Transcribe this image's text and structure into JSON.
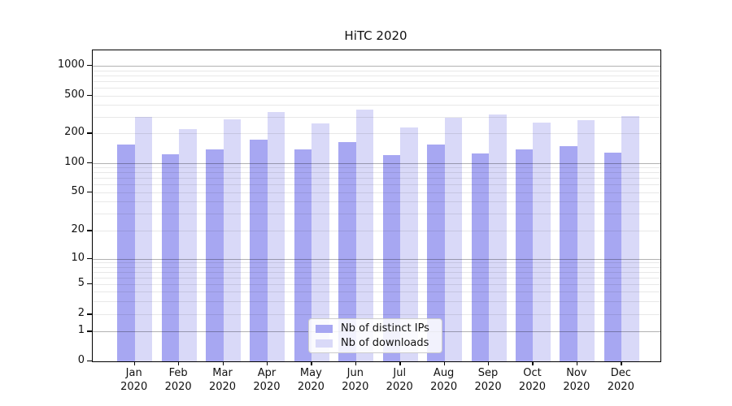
{
  "chart_data": {
    "type": "bar",
    "title": "HiTC 2020",
    "categories": [
      "Jan",
      "Feb",
      "Mar",
      "Apr",
      "May",
      "Jun",
      "Jul",
      "Aug",
      "Sep",
      "Oct",
      "Nov",
      "Dec"
    ],
    "x_year_label": "2020",
    "series": [
      {
        "name": "Nb of distinct IPs",
        "color": "#a7a7f2",
        "values": [
          155,
          124,
          138,
          172,
          138,
          164,
          120,
          153,
          126,
          139,
          148,
          128
        ]
      },
      {
        "name": "Nb of downloads",
        "color": "#d9d9f8",
        "values": [
          300,
          224,
          282,
          337,
          253,
          355,
          230,
          295,
          315,
          260,
          275,
          302
        ]
      }
    ],
    "xlabel": "",
    "ylabel": "",
    "y_scale": "symlog",
    "y_ticks": [
      0,
      1,
      2,
      5,
      10,
      20,
      50,
      100,
      200,
      500,
      1000
    ],
    "ylim": [
      0,
      1400
    ],
    "grid": true,
    "legend_position": "inside lower center"
  }
}
